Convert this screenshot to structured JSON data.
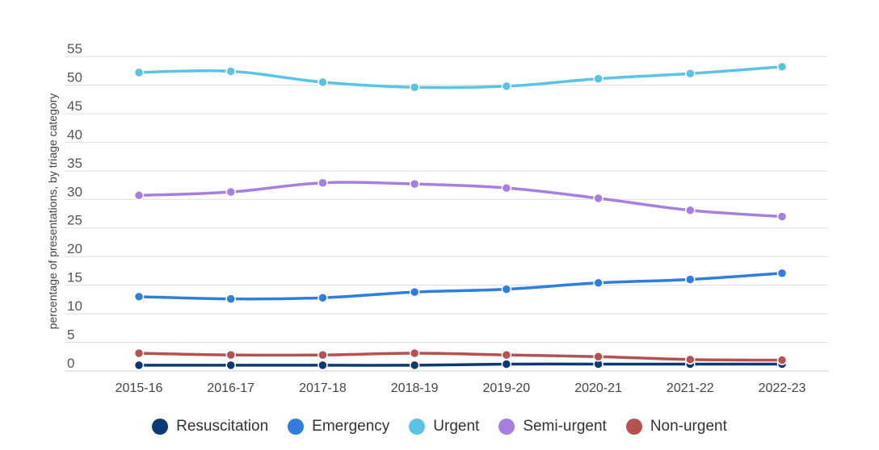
{
  "chart_data": {
    "type": "line",
    "title": "",
    "xlabel": "",
    "ylabel": "percentage of presentations, by triage category",
    "categories": [
      "2015-16",
      "2016-17",
      "2017-18",
      "2018-19",
      "2019-20",
      "2020-21",
      "2021-22",
      "2022-23"
    ],
    "y_ticks": [
      "0",
      "5",
      "10",
      "15",
      "20",
      "25",
      "30",
      "35",
      "40",
      "45",
      "50",
      "55"
    ],
    "ylim": [
      0,
      55
    ],
    "grid": true,
    "legend_placement": "bottom",
    "series": [
      {
        "name": "Resuscitation",
        "color": "#0b3a75",
        "values": [
          1.0,
          1.0,
          1.0,
          1.0,
          1.2,
          1.2,
          1.2,
          1.2
        ]
      },
      {
        "name": "Emergency",
        "color": "#2f7de1",
        "values": [
          13.0,
          12.6,
          12.8,
          13.8,
          14.3,
          15.4,
          16.0,
          17.1
        ]
      },
      {
        "name": "Urgent",
        "color": "#5bc4e6",
        "values": [
          52.2,
          52.4,
          50.5,
          49.6,
          49.8,
          51.1,
          52.0,
          53.2
        ]
      },
      {
        "name": "Semi-urgent",
        "color": "#a77fe0",
        "values": [
          30.7,
          31.3,
          32.9,
          32.7,
          32.0,
          30.2,
          28.1,
          27.0
        ]
      },
      {
        "name": "Non-urgent",
        "color": "#b5524f",
        "values": [
          3.1,
          2.8,
          2.8,
          3.1,
          2.8,
          2.5,
          2.0,
          1.9
        ]
      }
    ]
  }
}
